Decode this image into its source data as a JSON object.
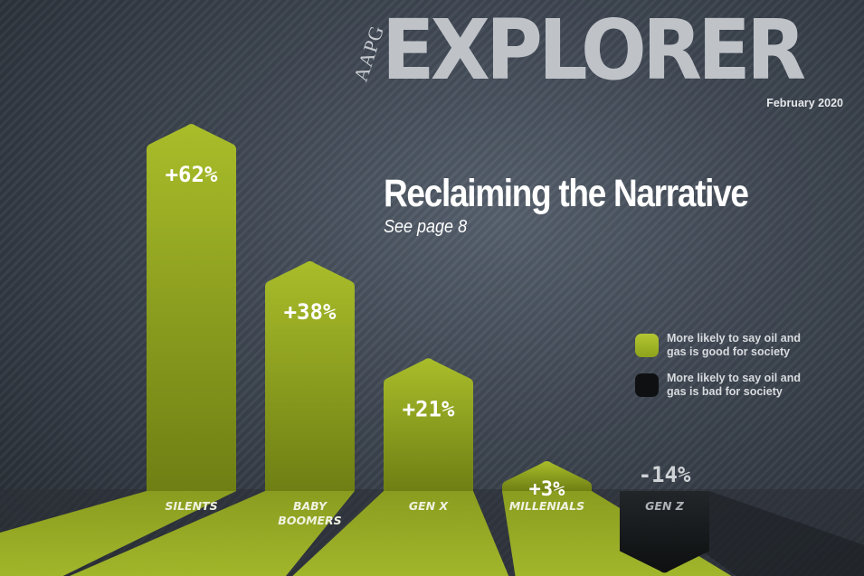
{
  "masthead": {
    "publisher": "AAPG",
    "title": "EXPLORER",
    "issue_date": "February 2020"
  },
  "headline": {
    "title": "Reclaiming the Narrative",
    "subtitle": "See page 8"
  },
  "legend": {
    "items": [
      {
        "label": "More likely to say oil and gas is good for society",
        "color": "#9db223"
      },
      {
        "label": "More likely to say oil and gas is bad for society",
        "color": "#141618"
      }
    ]
  },
  "chart_data": {
    "type": "bar",
    "categories": [
      "SILENTS",
      "BABY BOOMERS",
      "GEN X",
      "MILLENIALS",
      "GEN Z"
    ],
    "values": [
      62,
      38,
      21,
      3,
      -14
    ],
    "value_labels": [
      "+62%",
      "+38%",
      "+21%",
      "+3%",
      "-14%"
    ],
    "title": "",
    "xlabel": "",
    "ylabel": "",
    "colors": {
      "positive": "#9db223",
      "negative": "#141618",
      "label_on_positive": "#ffffff",
      "label_on_negative": "#d0d3d6",
      "category_label": "#f0f2e0"
    }
  }
}
